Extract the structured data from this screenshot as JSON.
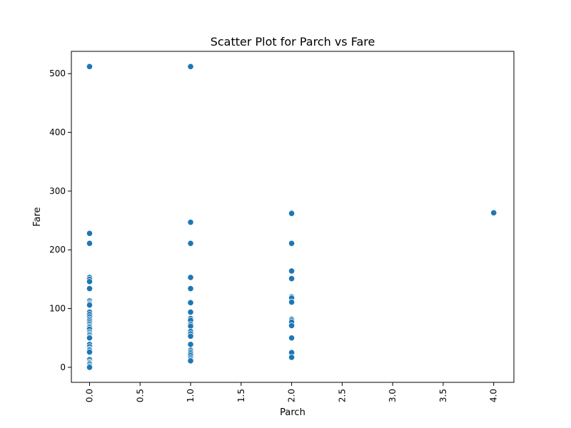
{
  "chart_data": {
    "type": "scatter",
    "title": "Scatter Plot for Parch vs Fare",
    "xlabel": "Parch",
    "ylabel": "Fare",
    "xlim": [
      -0.18,
      4.2
    ],
    "ylim": [
      -25.6,
      537.9
    ],
    "xticks": [
      0.0,
      0.5,
      1.0,
      1.5,
      2.0,
      2.5,
      3.0,
      3.5,
      4.0
    ],
    "xtick_labels": [
      "0.0",
      "0.5",
      "1.0",
      "1.5",
      "2.0",
      "2.5",
      "3.0",
      "3.5",
      "4.0"
    ],
    "yticks": [
      0,
      100,
      200,
      300,
      400,
      500
    ],
    "ytick_labels": [
      "0",
      "100",
      "200",
      "300",
      "400",
      "500"
    ],
    "grid": false,
    "marker_color": "#1f77b4",
    "series": [
      {
        "x": [
          0,
          0,
          0,
          0,
          0,
          0,
          0,
          0,
          0,
          0,
          0,
          0,
          0,
          0,
          0,
          0,
          0,
          0,
          0,
          0,
          0,
          0,
          0,
          0,
          0,
          0,
          0,
          0,
          0,
          0,
          0,
          0,
          0,
          0,
          0,
          0,
          0,
          1,
          1,
          1,
          1,
          1,
          1,
          1,
          1,
          1,
          1,
          1,
          1,
          1,
          1,
          1,
          1,
          1,
          1,
          1,
          1,
          1,
          1,
          2,
          2,
          2,
          2,
          2,
          2,
          2,
          2,
          2,
          2,
          2,
          2,
          2,
          2,
          2,
          2,
          4
        ],
        "y": [
          512,
          228,
          211,
          153,
          150,
          146,
          134,
          113,
          110,
          108,
          106,
          94,
          90,
          86,
          82,
          79,
          76,
          73,
          70,
          68,
          65,
          60,
          57,
          55,
          52,
          50,
          39,
          35,
          31,
          29,
          26,
          13,
          9,
          7,
          5,
          2,
          0,
          512,
          247,
          211,
          153,
          134,
          110,
          94,
          83,
          80,
          73,
          70,
          61,
          57,
          53,
          39,
          29,
          26,
          23,
          20,
          16,
          13,
          11,
          263,
          262,
          211,
          164,
          151,
          120,
          118,
          111,
          82,
          80,
          77,
          71,
          50,
          26,
          25,
          17,
          263
        ]
      }
    ]
  }
}
